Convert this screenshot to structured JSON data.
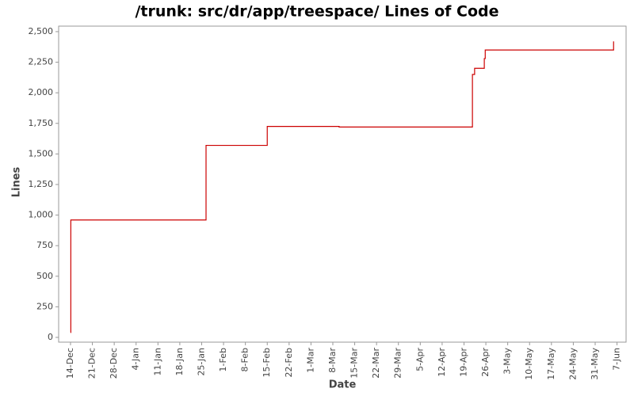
{
  "chart_data": {
    "type": "line",
    "title": "/trunk: src/dr/app/treespace/ Lines of Code",
    "x_label": "Date",
    "y_label": "Lines",
    "step": "post",
    "grid": false,
    "x": [
      0,
      0.1,
      43.4,
      63,
      86,
      128.7,
      129.4,
      132.5,
      132.8,
      173.9
    ],
    "series": [
      {
        "name": "Lines",
        "color": "#cc0000",
        "values": [
          40,
          960,
          1570,
          1725,
          1720,
          2150,
          2200,
          2280,
          2350,
          2420
        ]
      }
    ],
    "xlim": [
      -3.8,
      177.9
    ],
    "ylim": [
      -39,
      2545
    ],
    "xticks": [
      {
        "value": 0,
        "label": "14-Dec"
      },
      {
        "value": 7,
        "label": "21-Dec"
      },
      {
        "value": 14,
        "label": "28-Dec"
      },
      {
        "value": 21,
        "label": "4-Jan"
      },
      {
        "value": 28,
        "label": "11-Jan"
      },
      {
        "value": 35,
        "label": "18-Jan"
      },
      {
        "value": 42,
        "label": "25-Jan"
      },
      {
        "value": 49,
        "label": "1-Feb"
      },
      {
        "value": 56,
        "label": "8-Feb"
      },
      {
        "value": 63,
        "label": "15-Feb"
      },
      {
        "value": 70,
        "label": "22-Feb"
      },
      {
        "value": 77,
        "label": "1-Mar"
      },
      {
        "value": 84,
        "label": "8-Mar"
      },
      {
        "value": 91,
        "label": "15-Mar"
      },
      {
        "value": 98,
        "label": "22-Mar"
      },
      {
        "value": 105,
        "label": "29-Mar"
      },
      {
        "value": 112,
        "label": "5-Apr"
      },
      {
        "value": 119,
        "label": "12-Apr"
      },
      {
        "value": 126,
        "label": "19-Apr"
      },
      {
        "value": 133,
        "label": "26-Apr"
      },
      {
        "value": 140,
        "label": "3-May"
      },
      {
        "value": 147,
        "label": "10-May"
      },
      {
        "value": 154,
        "label": "17-May"
      },
      {
        "value": 161,
        "label": "24-May"
      },
      {
        "value": 168,
        "label": "31-May"
      },
      {
        "value": 175,
        "label": "7-Jun"
      }
    ],
    "yticks": [
      0,
      250,
      500,
      750,
      {
        "value": 1000,
        "label": "1,000"
      },
      {
        "value": 1250,
        "label": "1,250"
      },
      {
        "value": 1500,
        "label": "1,500"
      },
      {
        "value": 1750,
        "label": "1,750"
      },
      {
        "value": 2000,
        "label": "2,000"
      },
      {
        "value": 2250,
        "label": "2,250"
      },
      {
        "value": 2500,
        "label": "2,500"
      }
    ]
  }
}
